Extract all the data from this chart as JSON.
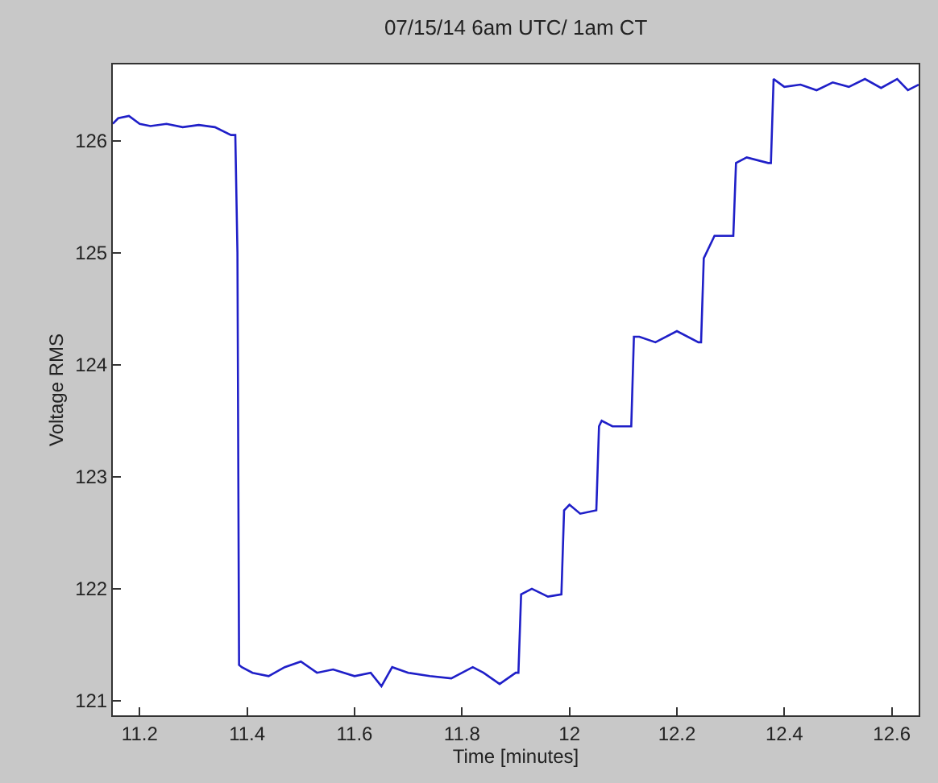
{
  "chart_data": {
    "type": "line",
    "title": "07/15/14 6am UTC/ 1am CT",
    "xlabel": "Time [minutes]",
    "ylabel": "Voltage RMS",
    "x": [
      11.15,
      11.16,
      11.18,
      11.2,
      11.22,
      11.25,
      11.28,
      11.31,
      11.34,
      11.37,
      11.378,
      11.382,
      11.385,
      11.39,
      11.41,
      11.44,
      11.47,
      11.5,
      11.53,
      11.56,
      11.6,
      11.63,
      11.65,
      11.67,
      11.7,
      11.74,
      11.78,
      11.82,
      11.84,
      11.87,
      11.9,
      11.905,
      11.91,
      11.93,
      11.96,
      11.985,
      11.99,
      12.0,
      12.02,
      12.05,
      12.055,
      12.06,
      12.08,
      12.115,
      12.12,
      12.13,
      12.16,
      12.2,
      12.24,
      12.245,
      12.25,
      12.27,
      12.3,
      12.305,
      12.31,
      12.33,
      12.37,
      12.375,
      12.38,
      12.4,
      12.43,
      12.46,
      12.49,
      12.52,
      12.55,
      12.58,
      12.61,
      12.63,
      12.65
    ],
    "series": [
      {
        "color": "#1f1fc8",
        "values": [
          126.15,
          126.2,
          126.22,
          126.15,
          126.13,
          126.15,
          126.12,
          126.14,
          126.12,
          126.05,
          126.05,
          125.0,
          121.32,
          121.3,
          121.25,
          121.22,
          121.3,
          121.35,
          121.25,
          121.28,
          121.22,
          121.25,
          121.13,
          121.3,
          121.25,
          121.22,
          121.2,
          121.3,
          121.25,
          121.15,
          121.25,
          121.25,
          121.95,
          122.0,
          121.93,
          121.95,
          122.7,
          122.75,
          122.67,
          122.7,
          123.45,
          123.5,
          123.45,
          123.45,
          124.25,
          124.25,
          124.2,
          124.3,
          124.2,
          124.2,
          124.95,
          125.15,
          125.15,
          125.15,
          125.8,
          125.85,
          125.8,
          125.8,
          126.55,
          126.48,
          126.5,
          126.45,
          126.52,
          126.48,
          126.55,
          126.47,
          126.55,
          126.45,
          126.5
        ]
      }
    ],
    "xlim": [
      11.15,
      12.65
    ],
    "ylim": [
      120.87,
      126.68
    ],
    "xticks": [
      {
        "value": 11.2,
        "label": "11.2"
      },
      {
        "value": 11.4,
        "label": "11.4"
      },
      {
        "value": 11.6,
        "label": "11.6"
      },
      {
        "value": 11.8,
        "label": "11.8"
      },
      {
        "value": 12,
        "label": "12"
      },
      {
        "value": 12.2,
        "label": "12.2"
      },
      {
        "value": 12.4,
        "label": "12.4"
      },
      {
        "value": 12.6,
        "label": "12.6"
      }
    ],
    "yticks": [
      121,
      122,
      123,
      124,
      125,
      126
    ],
    "marker": "none",
    "line_style": "solid"
  }
}
